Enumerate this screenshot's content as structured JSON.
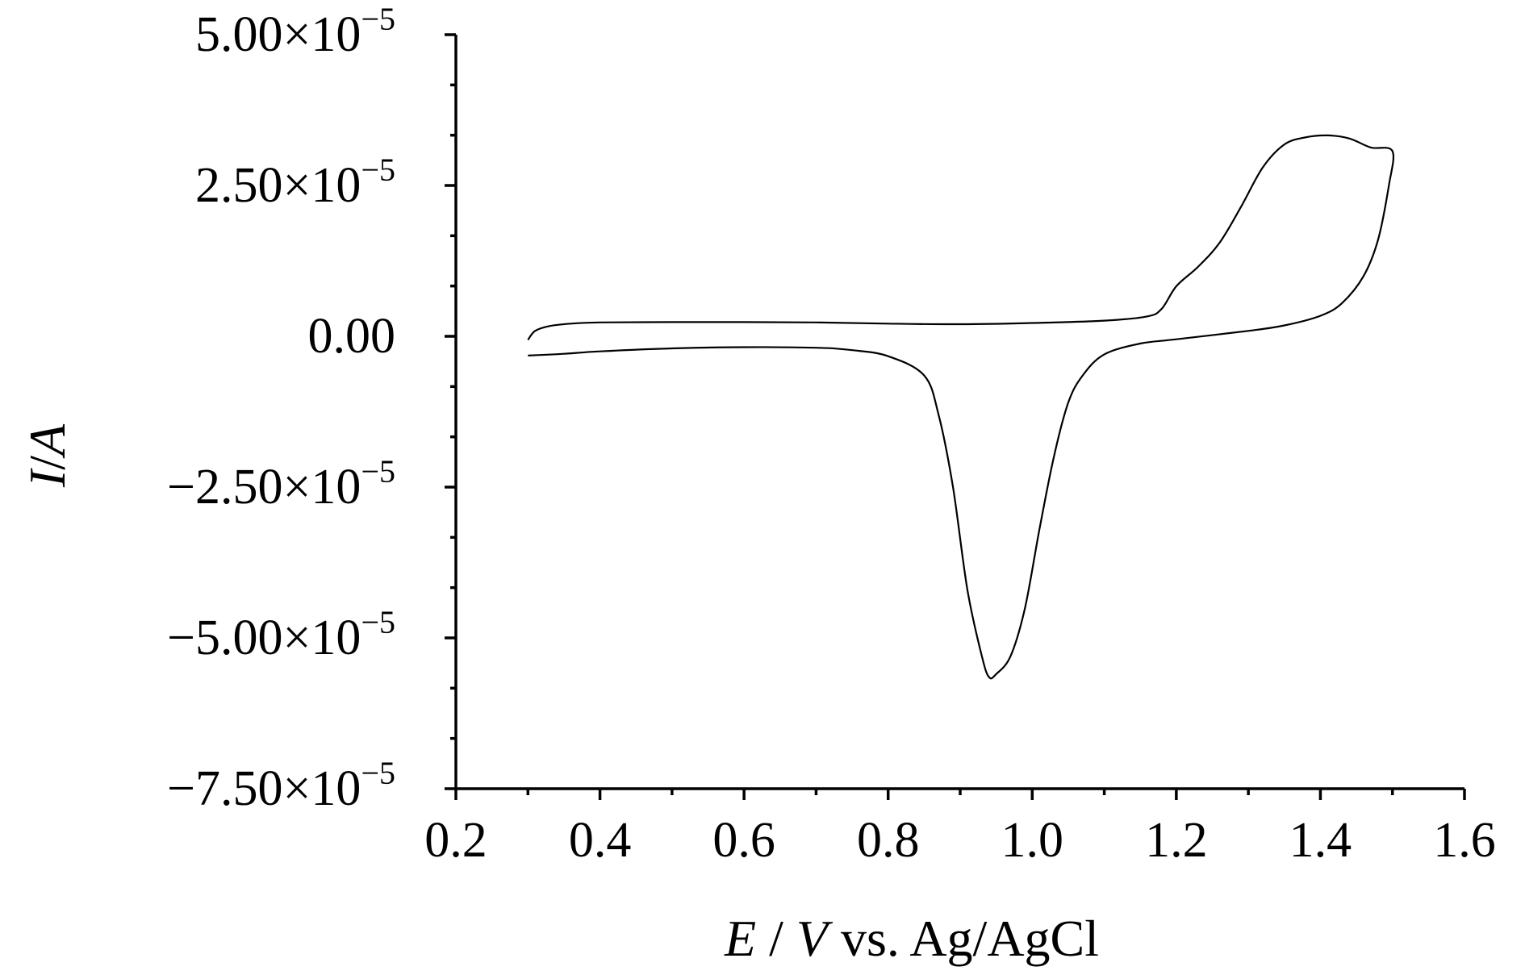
{
  "chart_data": {
    "type": "line",
    "title": "",
    "xlabel": {
      "italic_part": "E",
      "sep": " / ",
      "italic_unit": "V",
      "rest": " vs. Ag/AgCl"
    },
    "ylabel": {
      "italic_part": "I",
      "sep": "/",
      "italic_unit": "A"
    },
    "xlim": [
      0.2,
      1.6
    ],
    "ylim": [
      -7.5e-05,
      5e-05
    ],
    "x_ticks": [
      0.2,
      0.4,
      0.6,
      0.8,
      1.0,
      1.2,
      1.4,
      1.6
    ],
    "x_tick_labels": [
      "0.2",
      "0.4",
      "0.6",
      "0.8",
      "1.0",
      "1.2",
      "1.4",
      "1.6"
    ],
    "y_ticks": [
      5e-05,
      2.5e-05,
      0,
      -2.5e-05,
      -5e-05,
      -7.5e-05
    ],
    "y_tick_labels": [
      {
        "mantissa": "5.00",
        "exp": "−5"
      },
      {
        "mantissa": "2.50",
        "exp": "−5"
      },
      {
        "mantissa": "0.00",
        "exp": ""
      },
      {
        "mantissa": "−2.50",
        "exp": "−5"
      },
      {
        "mantissa": "−5.00",
        "exp": "−5"
      },
      {
        "mantissa": "−7.50",
        "exp": "−5"
      }
    ],
    "grid": false,
    "series": [
      {
        "points": [
          [
            0.3,
            -6e-07
          ],
          [
            0.31,
            9e-07
          ],
          [
            0.33,
            1.7e-06
          ],
          [
            0.36,
            2.1e-06
          ],
          [
            0.4,
            2.3e-06
          ],
          [
            0.5,
            2.35e-06
          ],
          [
            0.6,
            2.35e-06
          ],
          [
            0.7,
            2.3e-06
          ],
          [
            0.8,
            2.1e-06
          ],
          [
            0.9,
            2e-06
          ],
          [
            1.0,
            2.2e-06
          ],
          [
            1.1,
            2.6e-06
          ],
          [
            1.16,
            3.3e-06
          ],
          [
            1.18,
            4.6e-06
          ],
          [
            1.2,
            8.3e-06
          ],
          [
            1.23,
            1.15e-05
          ],
          [
            1.26,
            1.55e-05
          ],
          [
            1.29,
            2.15e-05
          ],
          [
            1.32,
            2.8e-05
          ],
          [
            1.35,
            3.18e-05
          ],
          [
            1.38,
            3.3e-05
          ],
          [
            1.41,
            3.33e-05
          ],
          [
            1.44,
            3.28e-05
          ],
          [
            1.47,
            3.13e-05
          ],
          [
            1.5,
            3.07e-05
          ],
          [
            1.495,
            2.5e-05
          ],
          [
            1.48,
            1.6e-05
          ],
          [
            1.46,
            1e-05
          ],
          [
            1.43,
            5.5e-06
          ],
          [
            1.4,
            3.4e-06
          ],
          [
            1.35,
            1.8e-06
          ],
          [
            1.3,
            9e-07
          ],
          [
            1.2,
            -5e-07
          ],
          [
            1.15,
            -1.2e-06
          ],
          [
            1.1,
            -3e-06
          ],
          [
            1.07,
            -6.5e-06
          ],
          [
            1.05,
            -1.1e-05
          ],
          [
            1.03,
            -2e-05
          ],
          [
            1.01,
            -3.2e-05
          ],
          [
            0.99,
            -4.5e-05
          ],
          [
            0.97,
            -5.3e-05
          ],
          [
            0.95,
            -5.6e-05
          ],
          [
            0.94,
            -5.65e-05
          ],
          [
            0.93,
            -5.3e-05
          ],
          [
            0.91,
            -4.2e-05
          ],
          [
            0.89,
            -2.5e-05
          ],
          [
            0.87,
            -1.3e-05
          ],
          [
            0.85,
            -6.5e-06
          ],
          [
            0.8,
            -3.3e-06
          ],
          [
            0.75,
            -2.3e-06
          ],
          [
            0.7,
            -1.9e-06
          ],
          [
            0.6,
            -1.8e-06
          ],
          [
            0.5,
            -2e-06
          ],
          [
            0.4,
            -2.5e-06
          ],
          [
            0.35,
            -2.9e-06
          ],
          [
            0.3,
            -3.2e-06
          ]
        ]
      }
    ]
  }
}
